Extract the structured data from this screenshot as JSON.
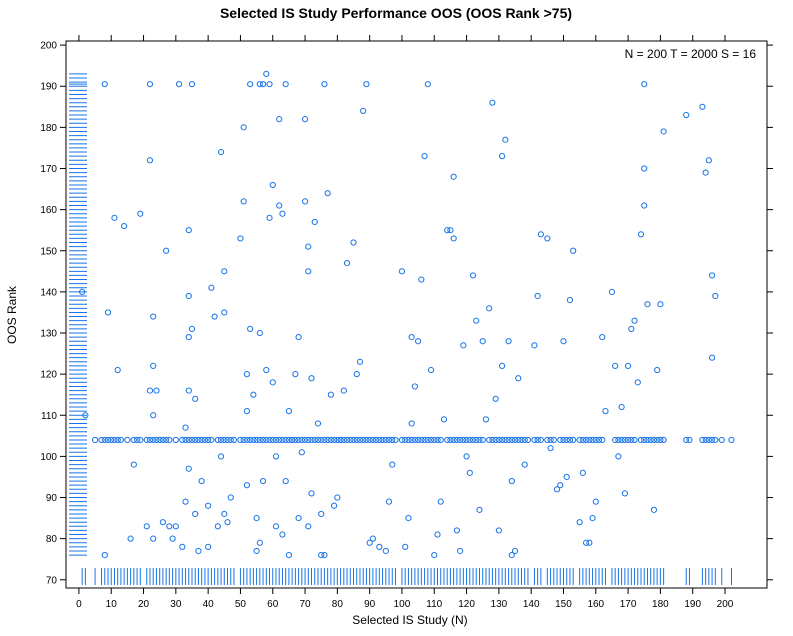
{
  "chart_data": {
    "type": "scatter",
    "title": "Selected IS Study Performance OOS (OOS Rank >75)",
    "xlabel": "Selected IS Study (N)",
    "ylabel": "OOS Rank",
    "annotation": "N = 200  T = 2000  S = 16",
    "xlim": [
      -4,
      213
    ],
    "ylim": [
      68,
      201
    ],
    "xticks": [
      0,
      10,
      20,
      30,
      40,
      50,
      60,
      70,
      80,
      90,
      100,
      110,
      120,
      130,
      140,
      150,
      160,
      170,
      180,
      190,
      200
    ],
    "yticks": [
      70,
      80,
      90,
      100,
      110,
      120,
      130,
      140,
      150,
      160,
      170,
      180,
      190,
      200
    ],
    "grid": false,
    "point_color": "#1874e8",
    "series": [
      {
        "x": [
          1,
          2,
          5,
          7,
          8,
          9,
          10,
          11,
          12,
          13,
          15,
          17,
          18,
          19,
          21,
          22,
          23,
          24,
          25,
          26,
          27,
          28,
          30,
          32,
          33,
          34,
          35,
          36,
          37,
          38,
          39,
          40,
          41,
          43,
          44,
          45,
          46,
          47,
          48,
          50,
          51,
          52,
          53,
          54,
          55,
          56,
          57,
          58,
          59,
          60,
          61,
          62,
          63,
          64,
          65,
          66,
          67,
          68,
          69,
          70,
          71,
          72,
          73,
          74,
          75,
          76,
          77,
          78,
          79,
          80,
          81,
          82,
          83,
          84,
          85,
          86,
          87,
          88,
          89,
          90,
          91,
          92,
          93,
          94,
          95,
          96,
          97,
          98,
          100,
          101,
          102,
          103,
          104,
          105,
          106,
          107,
          108,
          109,
          110,
          111,
          112,
          114,
          115,
          116,
          117,
          118,
          119,
          120,
          121,
          122,
          123,
          124,
          125,
          127,
          128,
          129,
          130,
          131,
          132,
          133,
          134,
          135,
          136,
          137,
          138,
          139,
          141,
          142,
          143,
          145,
          146,
          147,
          149,
          150,
          151,
          152,
          153,
          155,
          156,
          157,
          158,
          159,
          160,
          161,
          162,
          166,
          167,
          168,
          169,
          170,
          171,
          172,
          174,
          175,
          176,
          177,
          178,
          179,
          180,
          181,
          188,
          189,
          193,
          194,
          195,
          196,
          197,
          199,
          202
        ],
        "y": [
          140,
          110,
          104,
          104,
          104,
          104,
          104,
          104,
          104,
          104,
          104,
          104,
          104,
          104,
          104,
          104,
          104,
          104,
          104,
          104,
          104,
          104,
          104,
          104,
          104,
          104,
          104,
          104,
          104,
          104,
          104,
          104,
          104,
          104,
          104,
          104,
          104,
          104,
          104,
          104,
          104,
          104,
          104,
          104,
          104,
          104,
          104,
          104,
          104,
          104,
          104,
          104,
          104,
          104,
          104,
          104,
          104,
          104,
          104,
          104,
          104,
          104,
          104,
          104,
          104,
          104,
          104,
          104,
          104,
          104,
          104,
          104,
          104,
          104,
          104,
          104,
          104,
          104,
          104,
          104,
          104,
          104,
          104,
          104,
          104,
          104,
          104,
          104,
          104,
          104,
          104,
          104,
          104,
          104,
          104,
          104,
          104,
          104,
          104,
          104,
          104,
          104,
          104,
          104,
          104,
          104,
          104,
          104,
          104,
          104,
          104,
          104,
          104,
          104,
          104,
          104,
          104,
          104,
          104,
          104,
          104,
          104,
          104,
          104,
          104,
          104,
          104,
          104,
          104,
          104,
          104,
          104,
          104,
          104,
          104,
          104,
          104,
          104,
          104,
          104,
          104,
          104,
          104,
          104,
          104,
          104,
          104,
          104,
          104,
          104,
          104,
          104,
          104,
          104,
          104,
          104,
          104,
          104,
          104,
          104,
          104,
          104,
          104,
          104,
          104,
          104,
          104,
          104,
          104
        ]
      },
      {
        "x": [
          8,
          8,
          9,
          11,
          12,
          14,
          16,
          17,
          19,
          21,
          22,
          22,
          22,
          23,
          23,
          23,
          23,
          24,
          26,
          27,
          28,
          29,
          30,
          31,
          32,
          33,
          33,
          34,
          34,
          34,
          34,
          34,
          35,
          35,
          36,
          36,
          37,
          38,
          40,
          40,
          41,
          42,
          43,
          44,
          44,
          45,
          45,
          45,
          46,
          47,
          50,
          51,
          51,
          52,
          52,
          52,
          53,
          53,
          54,
          55,
          55,
          56,
          56,
          56,
          57,
          57,
          58,
          58,
          59,
          59,
          60,
          60,
          61,
          61,
          62,
          62,
          63,
          63,
          64,
          64,
          65,
          65,
          66,
          67,
          68,
          68,
          69,
          70,
          70,
          71,
          71,
          71,
          72,
          72,
          73,
          74,
          75,
          75,
          76,
          76,
          77,
          78,
          79,
          80,
          81,
          82,
          83,
          85,
          86,
          87,
          88,
          89,
          90,
          91,
          93,
          95,
          96,
          97,
          100,
          101,
          102,
          103,
          103,
          104,
          105,
          106,
          107,
          108,
          109,
          110,
          111,
          112,
          113,
          114,
          115,
          116,
          116,
          117,
          118,
          119,
          120,
          121,
          122,
          123,
          124,
          125,
          126,
          127,
          128,
          129,
          130,
          131,
          131,
          132,
          133,
          134,
          134,
          135,
          136,
          138,
          141,
          142,
          143,
          145,
          146,
          148,
          149,
          150,
          151,
          152,
          153,
          155,
          156,
          157,
          158,
          159,
          160,
          162,
          163,
          165,
          166,
          167,
          168,
          169,
          170,
          171,
          172,
          173,
          174,
          175,
          175,
          175,
          176,
          178,
          179,
          180,
          181,
          188,
          193,
          194,
          195,
          196,
          196,
          197
        ],
        "y": [
          190.5,
          76,
          135,
          158,
          121,
          156,
          80,
          98,
          159,
          83,
          116,
          172,
          190.5,
          80,
          110,
          122,
          134,
          116,
          84,
          150,
          83,
          80,
          83,
          190.5,
          78,
          107,
          89,
          97,
          116,
          129,
          139,
          155,
          131,
          190.5,
          86,
          114,
          77,
          94,
          78,
          88,
          141,
          134,
          83,
          100,
          174,
          86,
          135,
          145,
          84,
          90,
          153,
          162,
          180,
          93,
          111,
          120,
          131,
          190.5,
          115,
          77,
          85,
          79,
          130,
          190.5,
          94,
          190.5,
          193,
          121,
          158,
          190.5,
          118,
          166,
          83,
          100,
          161,
          182,
          81,
          159,
          94,
          190.5,
          76,
          111,
          104,
          120,
          85,
          129,
          101,
          162,
          182,
          83,
          145,
          151,
          91,
          119,
          157,
          108,
          76,
          86,
          76,
          190.5,
          164,
          115,
          88,
          90,
          104,
          116,
          147,
          152,
          120,
          123,
          184,
          190.5,
          79,
          80,
          78,
          77,
          89,
          98,
          145,
          78,
          85,
          108,
          129,
          117,
          128,
          143,
          173,
          190.5,
          121,
          76,
          81,
          89,
          109,
          155,
          155,
          168,
          153,
          82,
          77,
          127,
          100,
          96,
          144,
          133,
          87,
          128,
          109,
          136,
          186,
          114,
          82,
          122,
          173,
          177,
          128,
          94,
          76,
          77,
          119,
          98,
          127,
          139,
          154,
          153,
          102,
          92,
          93,
          128,
          95,
          138,
          150,
          84,
          96,
          79,
          79,
          85,
          89,
          129,
          111,
          140,
          122,
          100,
          112,
          91,
          122,
          131,
          133,
          118,
          154,
          161,
          170,
          190.5,
          137,
          87,
          121,
          137,
          179,
          183,
          185,
          169,
          172,
          144,
          124,
          139
        ]
      }
    ],
    "rug_x_color": "#1874e8",
    "rug_y_color": "#1874e8",
    "rug_y_range": [
      76,
      193
    ]
  }
}
